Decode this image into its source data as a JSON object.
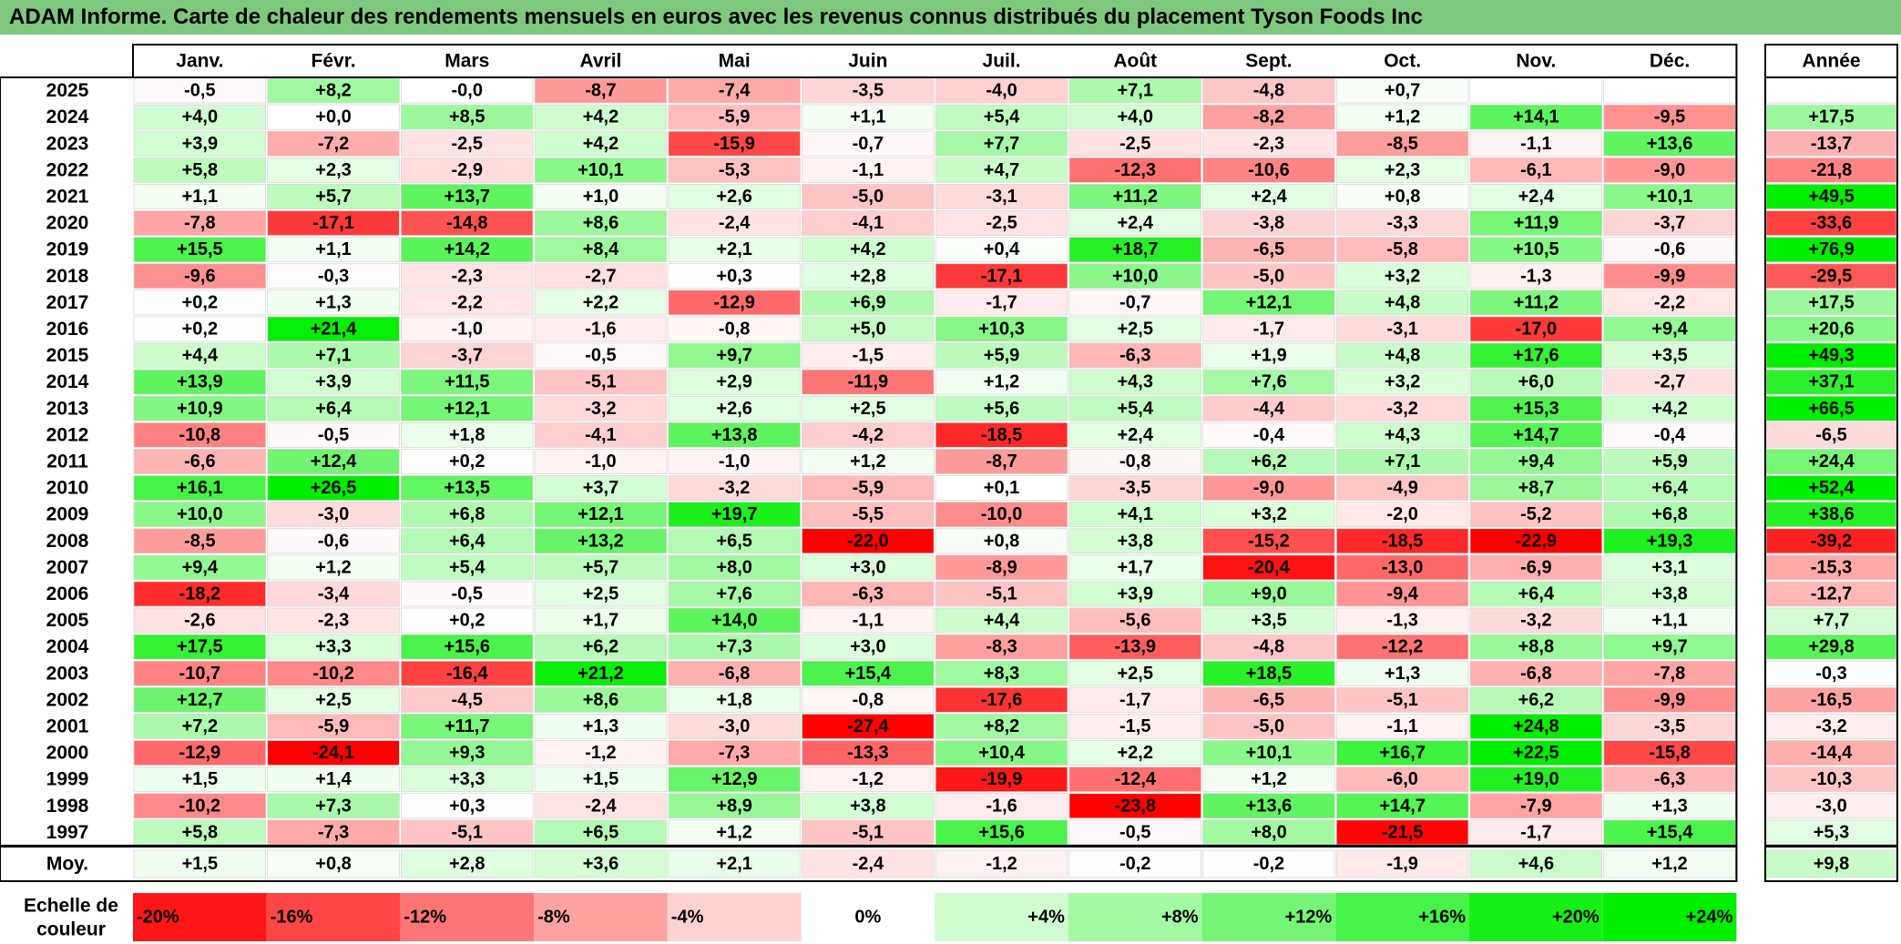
{
  "title": "ADAM Informe. Carte de chaleur des rendements mensuels en euros avec les revenus connus distribués du placement Tyson Foods Inc",
  "chart_data": {
    "type": "heatmap",
    "months": [
      "Janv.",
      "Févr.",
      "Mars",
      "Avril",
      "Mai",
      "Juin",
      "Juil.",
      "Août",
      "Sept.",
      "Oct.",
      "Nov.",
      "Déc."
    ],
    "year_header": "Année",
    "rows": [
      {
        "year": "2025",
        "values": [
          "-0,5",
          "+8,2",
          "-0,0",
          "-8,7",
          "-7,4",
          "-3,5",
          "-4,0",
          "+7,1",
          "-4,8",
          "+0,7",
          "",
          ""
        ],
        "annual": ""
      },
      {
        "year": "2024",
        "values": [
          "+4,0",
          "+0,0",
          "+8,5",
          "+4,2",
          "-5,9",
          "+1,1",
          "+5,4",
          "+4,0",
          "-8,2",
          "+1,2",
          "+14,1",
          "-9,5"
        ],
        "annual": "+17,5"
      },
      {
        "year": "2023",
        "values": [
          "+3,9",
          "-7,2",
          "-2,5",
          "+4,2",
          "-15,9",
          "-0,7",
          "+7,7",
          "-2,5",
          "-2,3",
          "-8,5",
          "-1,1",
          "+13,6"
        ],
        "annual": "-13,7"
      },
      {
        "year": "2022",
        "values": [
          "+5,8",
          "+2,3",
          "-2,9",
          "+10,1",
          "-5,3",
          "-1,1",
          "+4,7",
          "-12,3",
          "-10,6",
          "+2,3",
          "-6,1",
          "-9,0"
        ],
        "annual": "-21,8"
      },
      {
        "year": "2021",
        "values": [
          "+1,1",
          "+5,7",
          "+13,7",
          "+1,0",
          "+2,6",
          "-5,0",
          "-3,1",
          "+11,2",
          "+2,4",
          "+0,8",
          "+2,4",
          "+10,1"
        ],
        "annual": "+49,5"
      },
      {
        "year": "2020",
        "values": [
          "-7,8",
          "-17,1",
          "-14,8",
          "+8,6",
          "-2,4",
          "-4,1",
          "-2,5",
          "+2,4",
          "-3,8",
          "-3,3",
          "+11,9",
          "-3,7"
        ],
        "annual": "-33,6"
      },
      {
        "year": "2019",
        "values": [
          "+15,5",
          "+1,1",
          "+14,2",
          "+8,4",
          "+2,1",
          "+4,2",
          "+0,4",
          "+18,7",
          "-6,5",
          "-5,8",
          "+10,5",
          "-0,6"
        ],
        "annual": "+76,9"
      },
      {
        "year": "2018",
        "values": [
          "-9,6",
          "-0,3",
          "-2,3",
          "-2,7",
          "+0,3",
          "+2,8",
          "-17,1",
          "+10,0",
          "-5,0",
          "+3,2",
          "-1,3",
          "-9,9"
        ],
        "annual": "-29,5"
      },
      {
        "year": "2017",
        "values": [
          "+0,2",
          "+1,3",
          "-2,2",
          "+2,2",
          "-12,9",
          "+6,9",
          "-1,7",
          "-0,7",
          "+12,1",
          "+4,8",
          "+11,2",
          "-2,2"
        ],
        "annual": "+17,5"
      },
      {
        "year": "2016",
        "values": [
          "+0,2",
          "+21,4",
          "-1,0",
          "-1,6",
          "-0,8",
          "+5,0",
          "+10,3",
          "+2,5",
          "-1,7",
          "-3,1",
          "-17,0",
          "+9,4"
        ],
        "annual": "+20,6"
      },
      {
        "year": "2015",
        "values": [
          "+4,4",
          "+7,1",
          "-3,7",
          "-0,5",
          "+9,7",
          "-1,5",
          "+5,9",
          "-6,3",
          "+1,9",
          "+4,8",
          "+17,6",
          "+3,5"
        ],
        "annual": "+49,3"
      },
      {
        "year": "2014",
        "values": [
          "+13,9",
          "+3,9",
          "+11,5",
          "-5,1",
          "+2,9",
          "-11,9",
          "+1,2",
          "+4,3",
          "+7,6",
          "+3,2",
          "+6,0",
          "-2,7"
        ],
        "annual": "+37,1"
      },
      {
        "year": "2013",
        "values": [
          "+10,9",
          "+6,4",
          "+12,1",
          "-3,2",
          "+2,6",
          "+2,5",
          "+5,6",
          "+5,4",
          "-4,4",
          "-3,2",
          "+15,3",
          "+4,2"
        ],
        "annual": "+66,5"
      },
      {
        "year": "2012",
        "values": [
          "-10,8",
          "-0,5",
          "+1,8",
          "-4,1",
          "+13,8",
          "-4,2",
          "-18,5",
          "+2,4",
          "-0,4",
          "+4,3",
          "+14,7",
          "-0,4"
        ],
        "annual": "-6,5"
      },
      {
        "year": "2011",
        "values": [
          "-6,6",
          "+12,4",
          "+0,2",
          "-1,0",
          "-1,0",
          "+1,2",
          "-8,7",
          "-0,8",
          "+6,2",
          "+7,1",
          "+9,4",
          "+5,9"
        ],
        "annual": "+24,4"
      },
      {
        "year": "2010",
        "values": [
          "+16,1",
          "+26,5",
          "+13,5",
          "+3,7",
          "-3,2",
          "-5,9",
          "+0,1",
          "-3,5",
          "-9,0",
          "-4,9",
          "+8,7",
          "+6,4"
        ],
        "annual": "+52,4"
      },
      {
        "year": "2009",
        "values": [
          "+10,0",
          "-3,0",
          "+6,8",
          "+12,1",
          "+19,7",
          "-5,5",
          "-10,0",
          "+4,1",
          "+3,2",
          "-2,0",
          "-5,2",
          "+6,8"
        ],
        "annual": "+38,6"
      },
      {
        "year": "2008",
        "values": [
          "-8,5",
          "-0,6",
          "+6,4",
          "+13,2",
          "+6,5",
          "-22,0",
          "+0,8",
          "+3,8",
          "-15,2",
          "-18,5",
          "-22,9",
          "+19,3"
        ],
        "annual": "-39,2"
      },
      {
        "year": "2007",
        "values": [
          "+9,4",
          "+1,2",
          "+5,4",
          "+5,7",
          "+8,0",
          "+3,0",
          "-8,9",
          "+1,7",
          "-20,4",
          "-13,0",
          "-6,9",
          "+3,1"
        ],
        "annual": "-15,3"
      },
      {
        "year": "2006",
        "values": [
          "-18,2",
          "-3,4",
          "-0,5",
          "+2,5",
          "+7,6",
          "-6,3",
          "-5,1",
          "+3,9",
          "+9,0",
          "-9,4",
          "+6,4",
          "+3,8"
        ],
        "annual": "-12,7"
      },
      {
        "year": "2005",
        "values": [
          "-2,6",
          "-2,3",
          "+0,2",
          "+1,7",
          "+14,0",
          "-1,1",
          "+4,4",
          "-5,6",
          "+3,5",
          "-1,3",
          "-3,2",
          "+1,1"
        ],
        "annual": "+7,7"
      },
      {
        "year": "2004",
        "values": [
          "+17,5",
          "+3,3",
          "+15,6",
          "+6,2",
          "+7,3",
          "+3,0",
          "-8,3",
          "-13,9",
          "-4,8",
          "-12,2",
          "+8,8",
          "+9,7"
        ],
        "annual": "+29,8"
      },
      {
        "year": "2003",
        "values": [
          "-10,7",
          "-10,2",
          "-16,4",
          "+21,2",
          "-6,8",
          "+15,4",
          "+8,3",
          "+2,5",
          "+18,5",
          "+1,3",
          "-6,8",
          "-7,8"
        ],
        "annual": "-0,3"
      },
      {
        "year": "2002",
        "values": [
          "+12,7",
          "+2,5",
          "-4,5",
          "+8,6",
          "+1,8",
          "-0,8",
          "-17,6",
          "-1,7",
          "-6,5",
          "-5,1",
          "+6,2",
          "-9,9"
        ],
        "annual": "-16,5"
      },
      {
        "year": "2001",
        "values": [
          "+7,2",
          "-5,9",
          "+11,7",
          "+1,3",
          "-3,0",
          "-27,4",
          "+8,2",
          "-1,5",
          "-5,0",
          "-1,1",
          "+24,8",
          "-3,5"
        ],
        "annual": "-3,2"
      },
      {
        "year": "2000",
        "values": [
          "-12,9",
          "-24,1",
          "+9,3",
          "-1,2",
          "-7,3",
          "-13,3",
          "+10,4",
          "+2,2",
          "+10,1",
          "+16,7",
          "+22,5",
          "-15,8"
        ],
        "annual": "-14,4"
      },
      {
        "year": "1999",
        "values": [
          "+1,5",
          "+1,4",
          "+3,3",
          "+1,5",
          "+12,9",
          "-1,2",
          "-19,9",
          "-12,4",
          "+1,2",
          "-6,0",
          "+19,0",
          "-6,3"
        ],
        "annual": "-10,3"
      },
      {
        "year": "1998",
        "values": [
          "-10,2",
          "+7,3",
          "+0,3",
          "-2,4",
          "+8,9",
          "+3,8",
          "-1,6",
          "-23,8",
          "+13,6",
          "+14,7",
          "-7,9",
          "+1,3"
        ],
        "annual": "-3,0"
      },
      {
        "year": "1997",
        "values": [
          "+5,8",
          "-7,3",
          "-5,1",
          "+6,5",
          "+1,2",
          "-5,1",
          "+15,6",
          "-0,5",
          "+8,0",
          "-21,5",
          "-1,7",
          "+15,4"
        ],
        "annual": "+5,3"
      }
    ],
    "average": {
      "label": "Moy.",
      "values": [
        "+1,5",
        "+0,8",
        "+2,8",
        "+3,6",
        "+2,1",
        "-2,4",
        "-1,2",
        "-0,2",
        "-0,2",
        "-1,9",
        "+4,6",
        "+1,2"
      ],
      "annual": "+9,8"
    },
    "scale": {
      "label_line1": "Echelle de",
      "label_line2": "couleur",
      "steps": [
        "-20%",
        "-16%",
        "-12%",
        "-8%",
        "-4%",
        "0%",
        "+4%",
        "+8%",
        "+12%",
        "+16%",
        "+20%",
        "+24%"
      ]
    },
    "colors": {
      "negative_max": "#ff0000",
      "neutral": "#ffffff",
      "positive_max": "#00ee00",
      "title_bar": "#7ec87e"
    }
  }
}
